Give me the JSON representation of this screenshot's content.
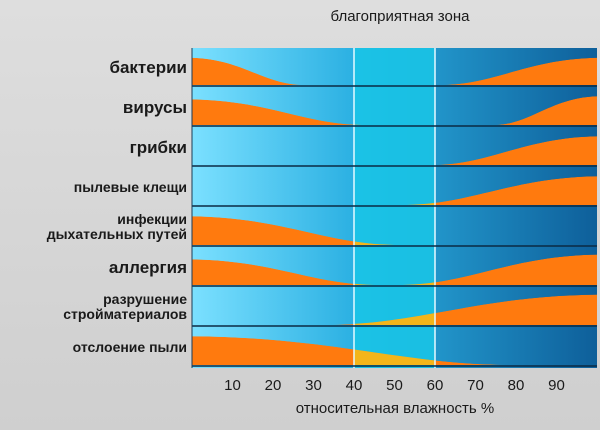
{
  "zone_label": "благоприятная зона",
  "axis_title": "относительная влажность %",
  "ticks": [
    "10",
    "20",
    "30",
    "40",
    "50",
    "60",
    "70",
    "80",
    "90"
  ],
  "rows": [
    {
      "label": "бактерии",
      "size": "big"
    },
    {
      "label": "вирусы",
      "size": "big"
    },
    {
      "label": "грибки",
      "size": "big"
    },
    {
      "label": "пылевые клещи",
      "size": "small"
    },
    {
      "label": "инфекции\nдыхательных путей",
      "size": "small"
    },
    {
      "label": "аллергия",
      "size": "big"
    },
    {
      "label": "разрушение\nстройматериалов",
      "size": "small"
    },
    {
      "label": "отслоение пыли",
      "size": "small"
    }
  ],
  "favorable_zone": [
    40,
    60
  ],
  "humidity_range": [
    0,
    100
  ],
  "colors": {
    "band": "#ff7a0e",
    "band_in_zone": "#f3b51a",
    "zone_fill": "#19c6e6",
    "zone_border": "#e6f9ff",
    "bg_left": "#7be0ff",
    "bg_mid": "#2bb0e2",
    "bg_right": "#0e5f9a"
  },
  "bands": [
    {
      "row": 0,
      "segments": [
        {
          "from": 0,
          "peak": 0,
          "to": 27,
          "peak_height": 0.85
        },
        {
          "from": 62,
          "peak": 100,
          "to": 100,
          "peak_height": 0.85
        }
      ]
    },
    {
      "row": 1,
      "segments": [
        {
          "from": 0,
          "peak": 0,
          "to": 42,
          "peak_height": 0.8
        },
        {
          "from": 75,
          "peak": 100,
          "to": 100,
          "peak_height": 0.9
        }
      ]
    },
    {
      "row": 2,
      "segments": [
        {
          "from": 60,
          "peak": 100,
          "to": 100,
          "peak_height": 0.9
        }
      ]
    },
    {
      "row": 3,
      "segments": [
        {
          "from": 53,
          "peak": 100,
          "to": 100,
          "peak_height": 0.9
        }
      ]
    },
    {
      "row": 4,
      "segments": [
        {
          "from": 0,
          "peak": 0,
          "to": 50,
          "peak_height": 0.9
        }
      ]
    },
    {
      "row": 5,
      "segments": [
        {
          "from": 0,
          "peak": 0,
          "to": 45,
          "peak_height": 0.8
        },
        {
          "from": 52,
          "peak": 100,
          "to": 100,
          "peak_height": 0.95
        }
      ]
    },
    {
      "row": 6,
      "segments": [
        {
          "from": 34,
          "peak": 100,
          "to": 100,
          "peak_height": 0.95
        }
      ]
    },
    {
      "row": 7,
      "segments": [
        {
          "from": 0,
          "peak": 0,
          "to": 78,
          "peak_height": 0.9
        }
      ]
    }
  ]
}
